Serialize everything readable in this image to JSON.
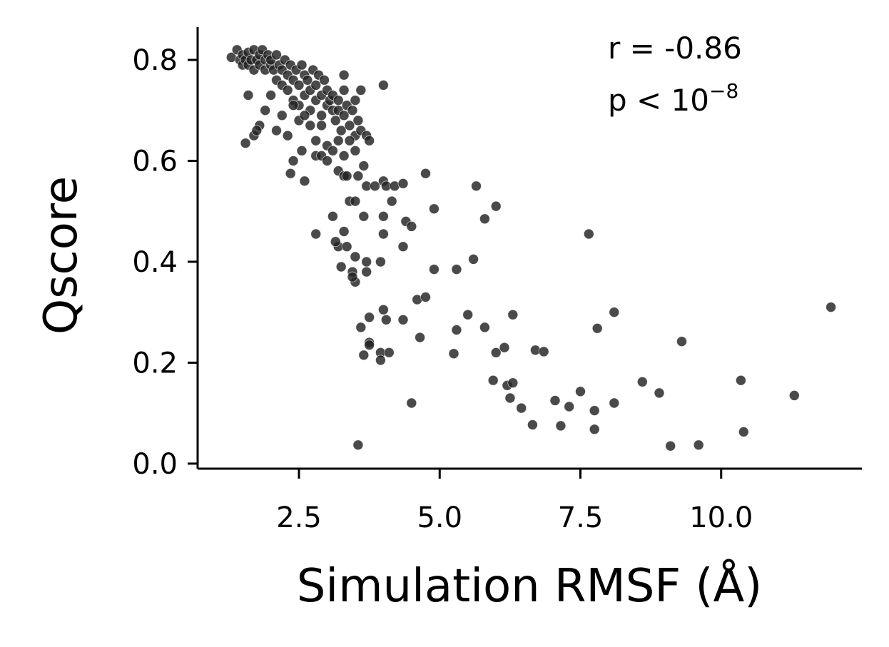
{
  "chart_data": {
    "type": "scatter",
    "title": "",
    "xlabel": "Simulation RMSF (Å)",
    "ylabel": "Qscore",
    "xlim": [
      0.7,
      12.5
    ],
    "ylim": [
      -0.01,
      0.865
    ],
    "xticks": [
      2.5,
      5.0,
      7.5,
      10.0
    ],
    "xtick_labels": [
      "2.5",
      "5.0",
      "7.5",
      "10.0"
    ],
    "yticks": [
      0.0,
      0.2,
      0.4,
      0.6,
      0.8
    ],
    "ytick_labels": [
      "0.0",
      "0.2",
      "0.4",
      "0.6",
      "0.8"
    ],
    "grid": false,
    "annotation": {
      "r_text": "r = -0.86",
      "p_prefix": "p < 10",
      "p_exp": "−8"
    },
    "marker_color": "#222222",
    "series": [
      {
        "points": [
          [
            1.3,
            0.805
          ],
          [
            1.4,
            0.82
          ],
          [
            1.45,
            0.8
          ],
          [
            1.5,
            0.81
          ],
          [
            1.5,
            0.79
          ],
          [
            1.55,
            0.8
          ],
          [
            1.6,
            0.815
          ],
          [
            1.6,
            0.79
          ],
          [
            1.65,
            0.8
          ],
          [
            1.7,
            0.82
          ],
          [
            1.7,
            0.78
          ],
          [
            1.75,
            0.8
          ],
          [
            1.8,
            0.81
          ],
          [
            1.8,
            0.79
          ],
          [
            1.85,
            0.82
          ],
          [
            1.9,
            0.8
          ],
          [
            1.9,
            0.78
          ],
          [
            1.95,
            0.81
          ],
          [
            2.0,
            0.79
          ],
          [
            2.0,
            0.8
          ],
          [
            2.05,
            0.78
          ],
          [
            2.1,
            0.81
          ],
          [
            2.1,
            0.76
          ],
          [
            2.15,
            0.79
          ],
          [
            2.2,
            0.78
          ],
          [
            2.2,
            0.75
          ],
          [
            2.25,
            0.8
          ],
          [
            2.3,
            0.77
          ],
          [
            2.3,
            0.74
          ],
          [
            2.35,
            0.79
          ],
          [
            2.4,
            0.76
          ],
          [
            2.4,
            0.72
          ],
          [
            2.45,
            0.78
          ],
          [
            2.5,
            0.75
          ],
          [
            2.5,
            0.71
          ],
          [
            2.55,
            0.79
          ],
          [
            2.6,
            0.77
          ],
          [
            2.6,
            0.73
          ],
          [
            2.65,
            0.76
          ],
          [
            2.7,
            0.74
          ],
          [
            2.7,
            0.7
          ],
          [
            2.75,
            0.78
          ],
          [
            2.8,
            0.75
          ],
          [
            2.8,
            0.72
          ],
          [
            2.85,
            0.77
          ],
          [
            2.9,
            0.73
          ],
          [
            2.9,
            0.69
          ],
          [
            2.95,
            0.76
          ],
          [
            3.0,
            0.74
          ],
          [
            3.0,
            0.71
          ],
          [
            3.05,
            0.72
          ],
          [
            3.1,
            0.7
          ],
          [
            3.1,
            0.73
          ],
          [
            3.15,
            0.68
          ],
          [
            3.2,
            0.72
          ],
          [
            3.2,
            0.7
          ],
          [
            3.25,
            0.66
          ],
          [
            3.3,
            0.74
          ],
          [
            3.3,
            0.69
          ],
          [
            3.35,
            0.71
          ],
          [
            3.4,
            0.67
          ],
          [
            3.45,
            0.7
          ],
          [
            3.5,
            0.72
          ],
          [
            3.5,
            0.65
          ],
          [
            3.55,
            0.68
          ],
          [
            1.6,
            0.73
          ],
          [
            1.7,
            0.65
          ],
          [
            1.8,
            0.67
          ],
          [
            1.9,
            0.7
          ],
          [
            2.0,
            0.73
          ],
          [
            2.1,
            0.66
          ],
          [
            2.2,
            0.69
          ],
          [
            2.3,
            0.65
          ],
          [
            2.4,
            0.71
          ],
          [
            2.5,
            0.68
          ],
          [
            2.6,
            0.69
          ],
          [
            2.7,
            0.67
          ],
          [
            2.8,
            0.64
          ],
          [
            2.9,
            0.67
          ],
          [
            3.0,
            0.63
          ],
          [
            3.1,
            0.62
          ],
          [
            3.2,
            0.64
          ],
          [
            3.3,
            0.61
          ],
          [
            3.4,
            0.64
          ],
          [
            3.5,
            0.62
          ],
          [
            3.6,
            0.66
          ],
          [
            3.7,
            0.65
          ],
          [
            3.75,
            0.64
          ],
          [
            3.3,
            0.77
          ],
          [
            3.6,
            0.74
          ],
          [
            1.55,
            0.635
          ],
          [
            1.75,
            0.66
          ],
          [
            2.35,
            0.575
          ],
          [
            2.4,
            0.6
          ],
          [
            2.55,
            0.62
          ],
          [
            2.6,
            0.56
          ],
          [
            2.8,
            0.61
          ],
          [
            2.9,
            0.61
          ],
          [
            3.0,
            0.6
          ],
          [
            3.2,
            0.58
          ],
          [
            3.3,
            0.57
          ],
          [
            3.35,
            0.57
          ],
          [
            3.4,
            0.52
          ],
          [
            3.5,
            0.52
          ],
          [
            3.55,
            0.57
          ],
          [
            3.65,
            0.59
          ],
          [
            3.7,
            0.55
          ],
          [
            3.85,
            0.55
          ],
          [
            4.0,
            0.56
          ],
          [
            4.05,
            0.55
          ],
          [
            4.2,
            0.55
          ],
          [
            4.35,
            0.555
          ],
          [
            4.15,
            0.52
          ],
          [
            4.0,
            0.49
          ],
          [
            3.65,
            0.49
          ],
          [
            3.1,
            0.49
          ],
          [
            2.8,
            0.455
          ],
          [
            3.3,
            0.46
          ],
          [
            3.2,
            0.43
          ],
          [
            3.15,
            0.44
          ],
          [
            3.35,
            0.43
          ],
          [
            3.5,
            0.41
          ],
          [
            3.7,
            0.4
          ],
          [
            3.95,
            0.4
          ],
          [
            4.0,
            0.455
          ],
          [
            4.35,
            0.43
          ],
          [
            4.4,
            0.48
          ],
          [
            4.5,
            0.47
          ],
          [
            4.9,
            0.505
          ],
          [
            4.75,
            0.575
          ],
          [
            5.65,
            0.55
          ],
          [
            6.0,
            0.51
          ],
          [
            5.8,
            0.485
          ],
          [
            5.6,
            0.405
          ],
          [
            5.3,
            0.385
          ],
          [
            4.9,
            0.385
          ],
          [
            7.65,
            0.455
          ],
          [
            3.25,
            0.39
          ],
          [
            3.45,
            0.38
          ],
          [
            3.5,
            0.36
          ],
          [
            3.45,
            0.37
          ],
          [
            3.7,
            0.38
          ],
          [
            4.0,
            0.305
          ],
          [
            4.05,
            0.285
          ],
          [
            4.35,
            0.285
          ],
          [
            4.6,
            0.325
          ],
          [
            4.75,
            0.33
          ],
          [
            3.75,
            0.29
          ],
          [
            3.6,
            0.27
          ],
          [
            3.75,
            0.24
          ],
          [
            3.75,
            0.235
          ],
          [
            3.65,
            0.215
          ],
          [
            3.95,
            0.22
          ],
          [
            3.95,
            0.205
          ],
          [
            4.1,
            0.22
          ],
          [
            4.65,
            0.25
          ],
          [
            5.3,
            0.265
          ],
          [
            5.5,
            0.295
          ],
          [
            5.8,
            0.27
          ],
          [
            6.0,
            0.22
          ],
          [
            6.15,
            0.23
          ],
          [
            6.3,
            0.295
          ],
          [
            5.25,
            0.218
          ],
          [
            5.95,
            0.165
          ],
          [
            6.2,
            0.155
          ],
          [
            6.3,
            0.16
          ],
          [
            6.25,
            0.13
          ],
          [
            6.45,
            0.11
          ],
          [
            6.7,
            0.225
          ],
          [
            6.85,
            0.222
          ],
          [
            6.65,
            0.077
          ],
          [
            7.05,
            0.125
          ],
          [
            7.15,
            0.075
          ],
          [
            7.3,
            0.113
          ],
          [
            7.5,
            0.143
          ],
          [
            7.75,
            0.105
          ],
          [
            7.75,
            0.068
          ],
          [
            7.8,
            0.268
          ],
          [
            8.1,
            0.3
          ],
          [
            8.1,
            0.12
          ],
          [
            8.6,
            0.162
          ],
          [
            8.9,
            0.14
          ],
          [
            9.1,
            0.035
          ],
          [
            9.3,
            0.242
          ],
          [
            9.6,
            0.037
          ],
          [
            10.35,
            0.165
          ],
          [
            10.4,
            0.063
          ],
          [
            11.3,
            0.135
          ],
          [
            11.95,
            0.31
          ],
          [
            4.0,
            0.75
          ],
          [
            4.5,
            0.12
          ],
          [
            3.55,
            0.037
          ]
        ]
      }
    ]
  }
}
